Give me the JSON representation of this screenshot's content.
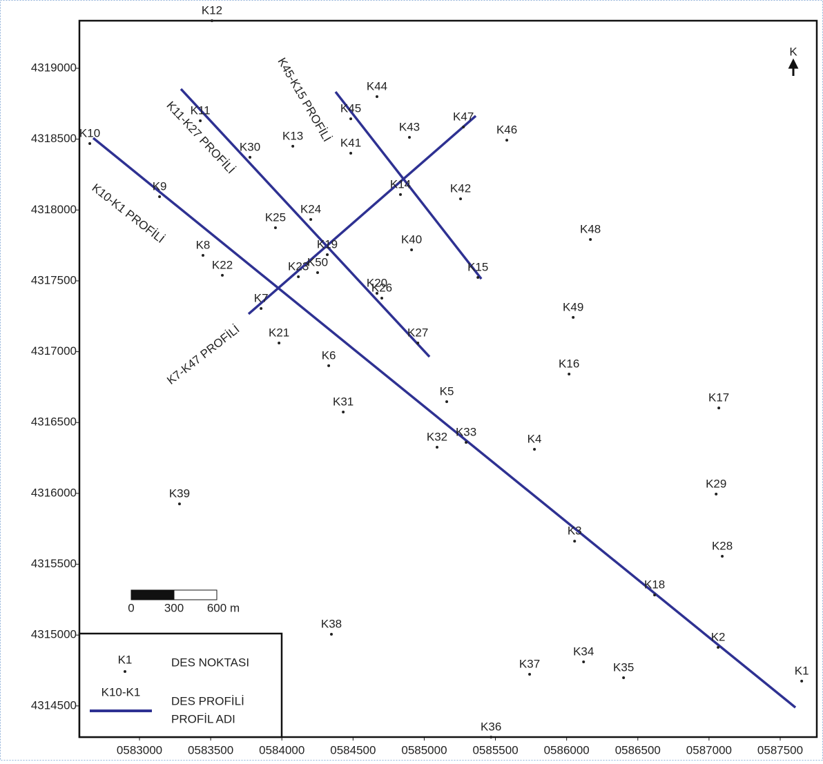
{
  "chart_data": {
    "type": "scatter",
    "north": "K",
    "xlim": [
      582578,
      587757
    ],
    "ylim": [
      4314280,
      4319336
    ],
    "xticks": [
      {
        "value": 583000,
        "label": "0583000"
      },
      {
        "value": 583500,
        "label": "0583500"
      },
      {
        "value": 584000,
        "label": "0584000"
      },
      {
        "value": 584500,
        "label": "0584500"
      },
      {
        "value": 585000,
        "label": "0585000"
      },
      {
        "value": 585500,
        "label": "0585500"
      },
      {
        "value": 586000,
        "label": "0586000"
      },
      {
        "value": 586500,
        "label": "0586500"
      },
      {
        "value": 587000,
        "label": "0587000"
      },
      {
        "value": 587500,
        "label": "0587500"
      }
    ],
    "yticks": [
      4314500,
      4315000,
      4315500,
      4316000,
      4316500,
      4317000,
      4317500,
      4318000,
      4318500,
      4319000
    ],
    "point_color": "#222222",
    "labels": [
      "K1",
      "K2",
      "K3",
      "K4",
      "K5",
      "K6",
      "K7",
      "K8",
      "K9",
      "K10",
      "K11",
      "K12",
      "K13",
      "K14",
      "K15",
      "K16",
      "K17",
      "K18",
      "K19",
      "K20",
      "K21",
      "K22",
      "K23",
      "K24",
      "K25",
      "K26",
      "K27",
      "K28",
      "K29",
      "K30",
      "K31",
      "K32",
      "K33",
      "K34",
      "K35",
      "K36",
      "K37",
      "K38",
      "K39",
      "K40",
      "K41",
      "K42",
      "K43",
      "K44",
      "K45",
      "K46",
      "K47",
      "K48",
      "K49",
      "K50"
    ],
    "x": [
      587651,
      587064,
      586056,
      585774,
      585158,
      584329,
      583854,
      583446,
      583141,
      582651,
      583427,
      583509,
      584077,
      584833,
      585377,
      586017,
      587069,
      586618,
      584319,
      584668,
      583980,
      583582,
      584116,
      584203,
      583955,
      584702,
      584955,
      587093,
      587050,
      583776,
      584431,
      585090,
      585294,
      586119,
      586400,
      585469,
      585740,
      584348,
      583281,
      584911,
      584484,
      585255,
      584896,
      584668,
      584484,
      585580,
      585275,
      586167,
      586046,
      584251
    ],
    "values": [
      4314675,
      4314913,
      4315663,
      4316311,
      4316647,
      4316901,
      4317305,
      4317680,
      4318094,
      4318469,
      4318630,
      4319336,
      4318450,
      4318109,
      4317524,
      4316842,
      4316603,
      4315283,
      4317685,
      4317412,
      4317061,
      4317539,
      4317529,
      4317933,
      4317875,
      4317378,
      4317061,
      4315556,
      4315995,
      4318372,
      4316574,
      4316326,
      4316360,
      4314811,
      4314699,
      4314280,
      4314723,
      4315006,
      4315926,
      4317719,
      4318401,
      4318079,
      4318513,
      4318800,
      4318644,
      4318493,
      4318586,
      4317792,
      4317242,
      4317558
    ],
    "profile_color": "#2e3192",
    "profiles": [
      {
        "name": "K10-K1 PROFİLİ",
        "x": [
          582675,
          587607
        ],
        "values": [
          4318508,
          4314489
        ]
      },
      {
        "name": "K11-K27 PROFİLİ",
        "x": [
          583291,
          585037
        ],
        "values": [
          4318854,
          4316964
        ]
      },
      {
        "name": "K45-K15 PROFİLİ",
        "x": [
          584377,
          585401
        ],
        "values": [
          4318834,
          4317514
        ]
      },
      {
        "name": "K7-K47 PROFİLİ",
        "x": [
          583766,
          585362
        ],
        "values": [
          4317266,
          4318664
        ]
      }
    ],
    "legend": {
      "point_label": "K1",
      "point_text": "DES NOKTASI",
      "line_label": "K10-K1",
      "line_text_1": "DES PROFİLİ",
      "line_text_2": "PROFİL ADI"
    },
    "scale_bar": {
      "labels": [
        "0",
        "300",
        "600"
      ],
      "unit": "m"
    }
  }
}
